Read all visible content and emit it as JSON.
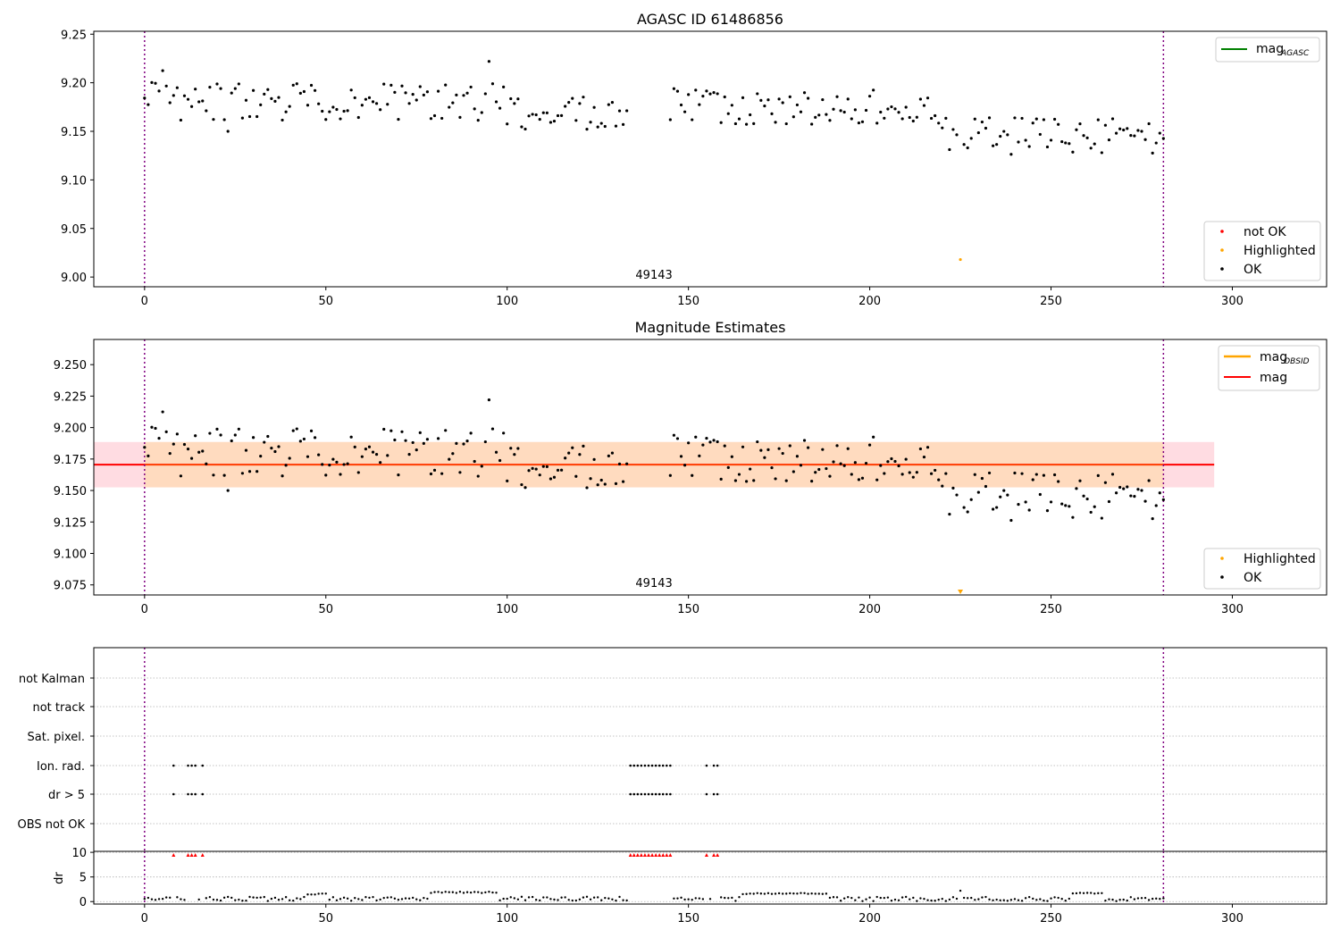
{
  "colors": {
    "ok": "#000000",
    "not_ok": "#ff0000",
    "highlighted": "#ffa500",
    "mag_agasc": "#008000",
    "mag_obsid": "#ffa500",
    "mag": "#ff0000",
    "band": "#ffc0cb",
    "band_inner": "#ffdab9",
    "obs_line": "#800080",
    "grid": "#b0b0b0"
  },
  "chart_data": [
    {
      "id": "agasc",
      "type": "scatter",
      "title": "AGASC ID 61486856",
      "xlim": [
        -14,
        326
      ],
      "ylim": [
        8.99,
        9.253
      ],
      "xticks": [
        0,
        50,
        100,
        150,
        200,
        250,
        300
      ],
      "yticks": [
        9.0,
        9.05,
        9.1,
        9.15,
        9.2,
        9.25
      ],
      "ytick_labels": [
        "9.00",
        "9.05",
        "9.10",
        "9.15",
        "9.20",
        "9.25"
      ],
      "obs_boundaries": [
        0,
        281
      ],
      "obs_label": "49143",
      "obs_label_x": 140.5,
      "legend_lines": [
        {
          "label_base": "mag",
          "label_sub": "AGASC",
          "color": "#008000"
        }
      ],
      "legend_points": [
        {
          "label": "not OK",
          "color": "#ff0000"
        },
        {
          "label": "Highlighted",
          "color": "#ffa500"
        },
        {
          "label": "OK",
          "color": "#000000"
        }
      ],
      "highlighted": [
        {
          "x": 225,
          "y": 9.018
        }
      ]
    },
    {
      "id": "estimates",
      "type": "scatter",
      "title": "Magnitude Estimates",
      "xlim": [
        -14,
        326
      ],
      "ylim": [
        9.067,
        9.27
      ],
      "xticks": [
        0,
        50,
        100,
        150,
        200,
        250,
        300
      ],
      "yticks": [
        9.075,
        9.1,
        9.125,
        9.15,
        9.175,
        9.2,
        9.225,
        9.25
      ],
      "ytick_labels": [
        "9.075",
        "9.100",
        "9.125",
        "9.150",
        "9.175",
        "9.200",
        "9.225",
        "9.250"
      ],
      "obs_boundaries": [
        0,
        281
      ],
      "obs_label": "49143",
      "obs_label_x": 140.5,
      "mag": 9.1705,
      "band": {
        "x": [
          -14,
          295
        ],
        "y": [
          9.1525,
          9.1885
        ]
      },
      "band_inner": {
        "x": [
          0,
          281
        ],
        "y": [
          9.1525,
          9.1885
        ]
      },
      "legend_lines": [
        {
          "label_base": "mag",
          "label_sub": "OBSID",
          "color": "#ffa500"
        },
        {
          "label_base": "mag",
          "label_sub": "",
          "color": "#ff0000"
        }
      ],
      "legend_points": [
        {
          "label": "Highlighted",
          "color": "#ffa500"
        },
        {
          "label": "OK",
          "color": "#000000"
        }
      ],
      "highlighted_clipped": [
        {
          "x": 225
        }
      ]
    },
    {
      "id": "flags",
      "type": "scatter",
      "xlim": [
        -14,
        326
      ],
      "xticks": [
        0,
        50,
        100,
        150,
        200,
        250,
        300
      ],
      "obs_boundaries": [
        0,
        281
      ],
      "flag_rows": [
        "not Kalman",
        "not track",
        "Sat. pixel.",
        "Ion. rad.",
        "dr > 5",
        "OBS not OK"
      ],
      "flag_points": {
        "Ion. rad.": [
          8,
          12,
          13,
          14,
          16,
          134,
          135,
          136,
          137,
          138,
          139,
          140,
          141,
          142,
          143,
          144,
          145,
          155,
          157,
          158
        ],
        "dr > 5": [
          8,
          12,
          13,
          14,
          16,
          134,
          135,
          136,
          137,
          138,
          139,
          140,
          141,
          142,
          143,
          144,
          145,
          155,
          157,
          158
        ]
      },
      "dr_ylabel": "dr",
      "dr_ylim": [
        -0.5,
        10.2
      ],
      "dr_yticks": [
        0,
        5,
        10
      ],
      "dr_clipped_x": [
        8,
        12,
        13,
        14,
        16,
        134,
        135,
        136,
        137,
        138,
        139,
        140,
        141,
        142,
        143,
        144,
        145,
        155,
        157,
        158
      ]
    }
  ]
}
